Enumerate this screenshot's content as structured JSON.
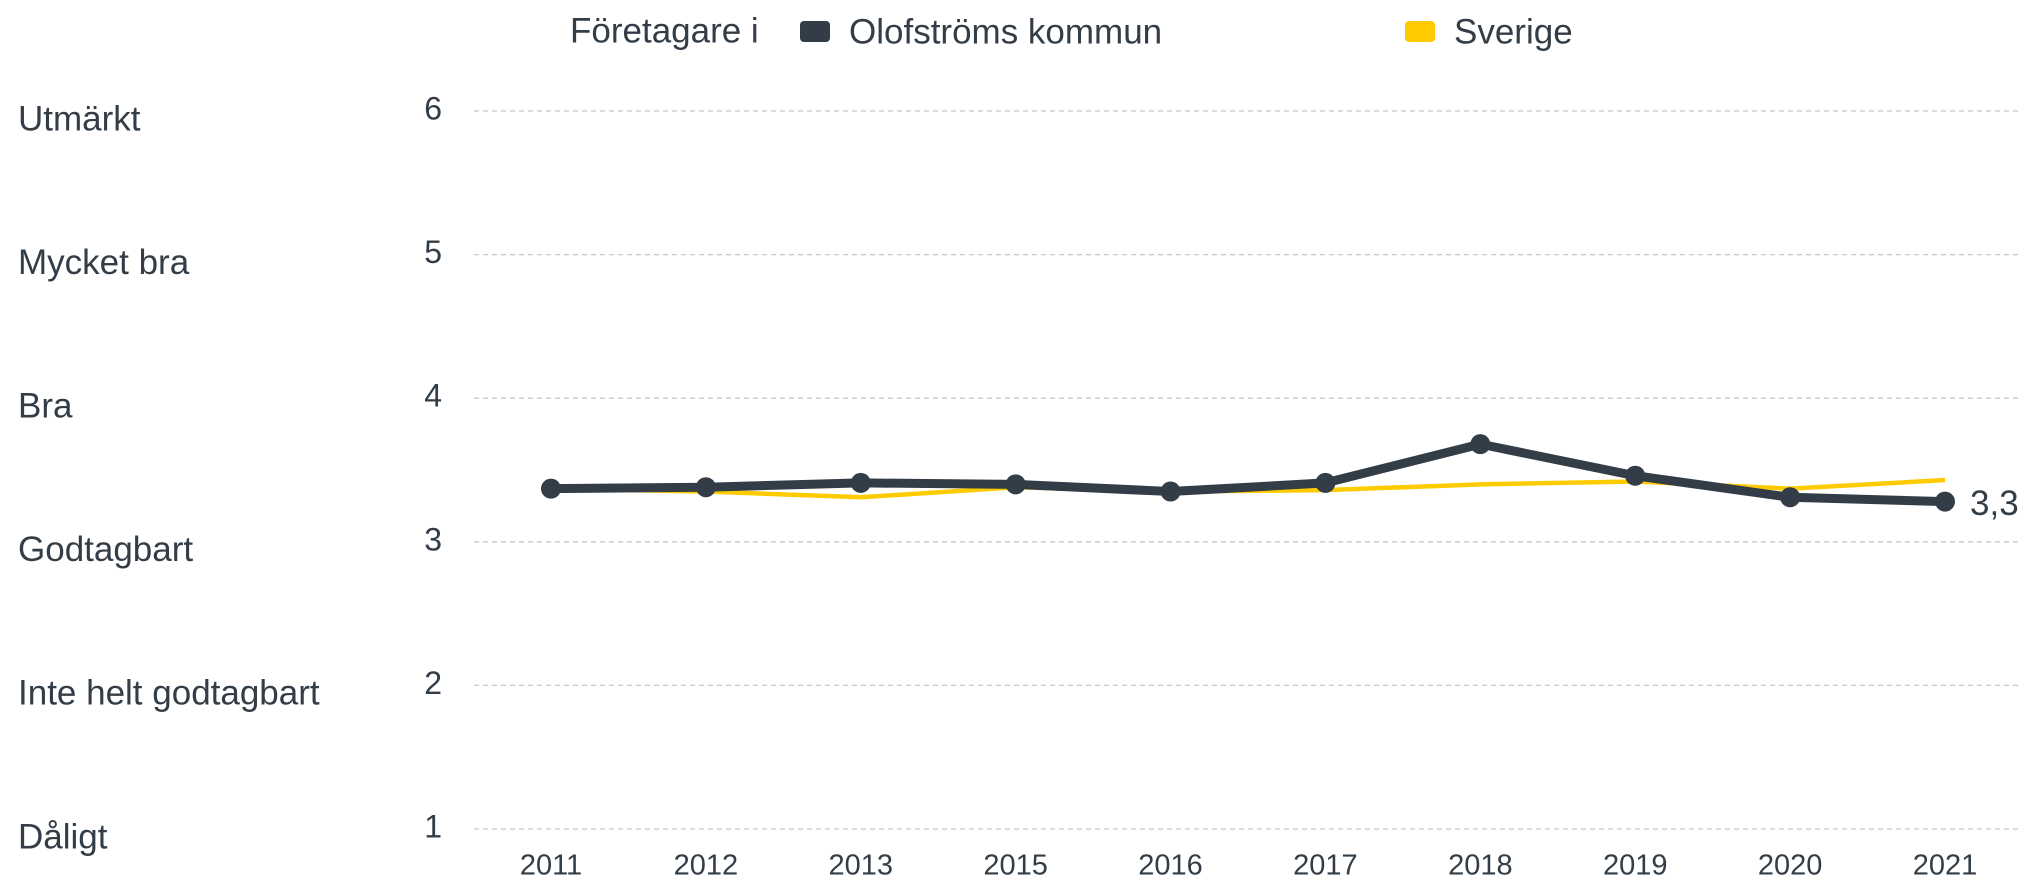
{
  "chart_data": {
    "type": "line",
    "legend_prefix": "Företagare i",
    "categories": [
      "2011",
      "2012",
      "2013",
      "2015",
      "2016",
      "2017",
      "2018",
      "2019",
      "2020",
      "2021"
    ],
    "series": [
      {
        "name": "Olofströms kommun",
        "color": "#333d47",
        "values": [
          3.37,
          3.38,
          3.41,
          3.4,
          3.35,
          3.41,
          3.68,
          3.46,
          3.31,
          3.28
        ],
        "value_labels": [
          null,
          null,
          null,
          null,
          null,
          null,
          null,
          null,
          null,
          "3,3"
        ]
      },
      {
        "name": "Sverige",
        "color": "#fecb00",
        "values": [
          3.37,
          3.35,
          3.31,
          3.38,
          3.35,
          3.36,
          3.4,
          3.42,
          3.37,
          3.43
        ]
      }
    ],
    "scale_labels": [
      "Utmärkt",
      "Mycket bra",
      "Bra",
      "Godtagbart",
      "Inte helt godtagbart",
      "Dåligt"
    ],
    "ylim": [
      1,
      6
    ],
    "yticks": [
      1,
      2,
      3,
      4,
      5,
      6
    ],
    "grid": true
  }
}
